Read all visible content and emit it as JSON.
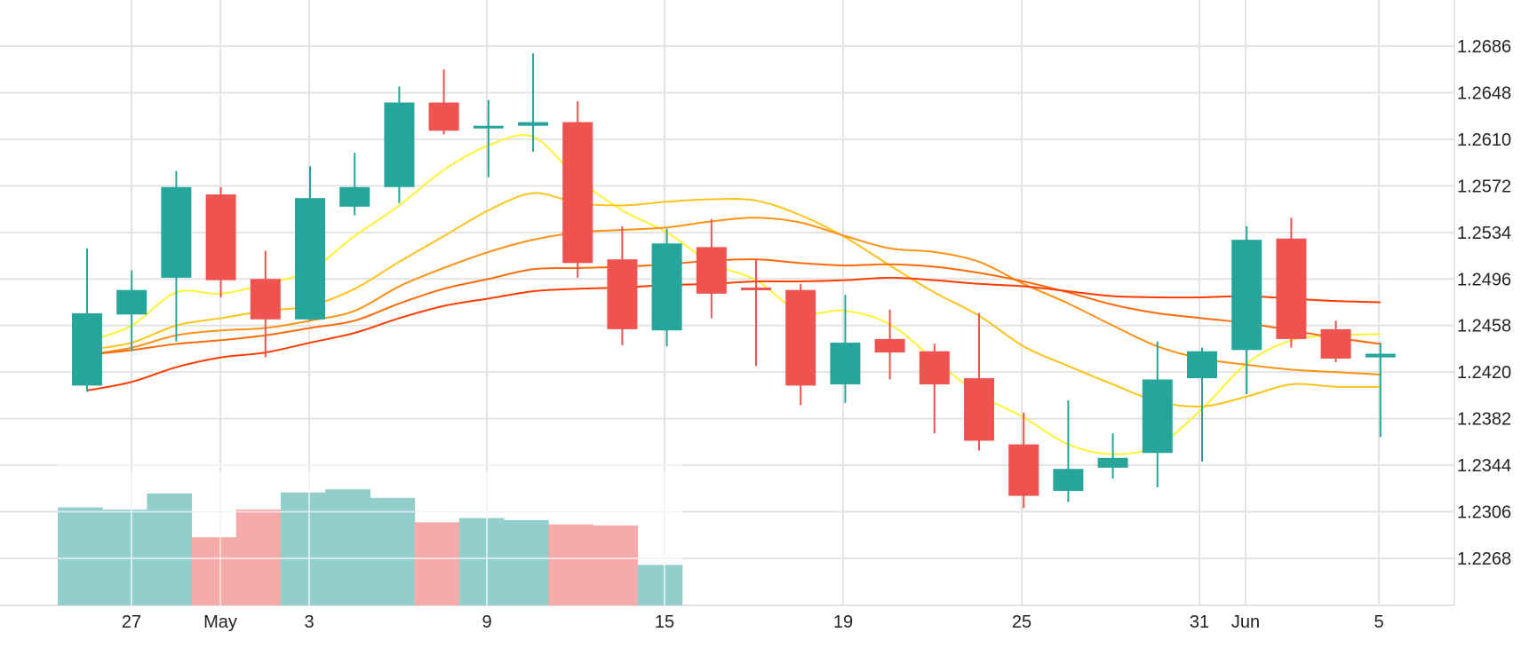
{
  "chart_data": {
    "type": "candlestick",
    "x_ticks": [
      "27",
      "May",
      "3",
      "9",
      "15",
      "19",
      "25",
      "31",
      "Jun",
      "5"
    ],
    "y_ticks": [
      "1.2686",
      "1.2648",
      "1.2610",
      "1.2572",
      "1.2534",
      "1.2496",
      "1.2458",
      "1.2420",
      "1.2382",
      "1.2344",
      "1.2306",
      "1.2268"
    ],
    "ylim": [
      1.2232,
      1.2722
    ],
    "grid": true,
    "candles": [
      {
        "date": "Apr 24",
        "open": 1.2409,
        "high": 1.2521,
        "low": 1.2404,
        "close": 1.2468
      },
      {
        "date": "Apr 26",
        "open": 1.2467,
        "high": 1.2503,
        "low": 1.2437,
        "close": 1.2487
      },
      {
        "date": "Apr 28",
        "open": 1.2497,
        "high": 1.2584,
        "low": 1.2445,
        "close": 1.2571
      },
      {
        "date": "Apr 30",
        "open": 1.2565,
        "high": 1.2571,
        "low": 1.2481,
        "close": 1.2495
      },
      {
        "date": "May 2",
        "open": 1.2496,
        "high": 1.2519,
        "low": 1.2432,
        "close": 1.2463
      },
      {
        "date": "May 3",
        "open": 1.2463,
        "high": 1.2588,
        "low": 1.2462,
        "close": 1.2562
      },
      {
        "date": "May 5",
        "open": 1.2555,
        "high": 1.2599,
        "low": 1.2548,
        "close": 1.2571
      },
      {
        "date": "May 6",
        "open": 1.2571,
        "high": 1.2653,
        "low": 1.2558,
        "close": 1.264
      },
      {
        "date": "May 8",
        "open": 1.264,
        "high": 1.2667,
        "low": 1.2614,
        "close": 1.2617
      },
      {
        "date": "May 9",
        "open": 1.262,
        "high": 1.2642,
        "low": 1.2579,
        "close": 1.2621
      },
      {
        "date": "May 10",
        "open": 1.2621,
        "high": 1.268,
        "low": 1.26,
        "close": 1.2624
      },
      {
        "date": "May 12",
        "open": 1.2624,
        "high": 1.2641,
        "low": 1.2497,
        "close": 1.2509
      },
      {
        "date": "May 13",
        "open": 1.2512,
        "high": 1.2539,
        "low": 1.2442,
        "close": 1.2455
      },
      {
        "date": "May 15",
        "open": 1.2454,
        "high": 1.2537,
        "low": 1.2441,
        "close": 1.2525
      },
      {
        "date": "May 16",
        "open": 1.2522,
        "high": 1.2545,
        "low": 1.2464,
        "close": 1.2484
      },
      {
        "date": "May 17",
        "open": 1.2489,
        "high": 1.2512,
        "low": 1.2425,
        "close": 1.2487
      },
      {
        "date": "May 18",
        "open": 1.2487,
        "high": 1.2492,
        "low": 1.2393,
        "close": 1.2409
      },
      {
        "date": "May 19",
        "open": 1.241,
        "high": 1.2483,
        "low": 1.2395,
        "close": 1.2444
      },
      {
        "date": "May 21",
        "open": 1.2447,
        "high": 1.2471,
        "low": 1.2414,
        "close": 1.2436
      },
      {
        "date": "May 22",
        "open": 1.2437,
        "high": 1.2443,
        "low": 1.237,
        "close": 1.241
      },
      {
        "date": "May 24",
        "open": 1.2415,
        "high": 1.2468,
        "low": 1.2356,
        "close": 1.2364
      },
      {
        "date": "May 25",
        "open": 1.2361,
        "high": 1.2387,
        "low": 1.2309,
        "close": 1.2319
      },
      {
        "date": "May 26",
        "open": 1.2323,
        "high": 1.2397,
        "low": 1.2314,
        "close": 1.2341
      },
      {
        "date": "May 28",
        "open": 1.2342,
        "high": 1.237,
        "low": 1.2333,
        "close": 1.235
      },
      {
        "date": "May 30",
        "open": 1.2354,
        "high": 1.2445,
        "low": 1.2326,
        "close": 1.2414
      },
      {
        "date": "May 31",
        "open": 1.2415,
        "high": 1.244,
        "low": 1.2347,
        "close": 1.2437
      },
      {
        "date": "Jun 1",
        "open": 1.2438,
        "high": 1.2539,
        "low": 1.2402,
        "close": 1.2528
      },
      {
        "date": "Jun 2",
        "open": 1.2529,
        "high": 1.2546,
        "low": 1.244,
        "close": 1.2447
      },
      {
        "date": "Jun 4",
        "open": 1.2455,
        "high": 1.2462,
        "low": 1.2428,
        "close": 1.2431
      },
      {
        "date": "Jun 5",
        "open": 1.2432,
        "high": 1.2444,
        "low": 1.2367,
        "close": 1.2435
      }
    ],
    "volume_bars": [
      {
        "date": "Apr 24",
        "value": 92,
        "direction": "up"
      },
      {
        "date": "Apr 26",
        "value": 90,
        "direction": "up"
      },
      {
        "date": "Apr 28",
        "value": 105,
        "direction": "up"
      },
      {
        "date": "Apr 30",
        "value": 64,
        "direction": "down"
      },
      {
        "date": "May 2",
        "value": 90,
        "direction": "down"
      },
      {
        "date": "May 3",
        "value": 106,
        "direction": "up"
      },
      {
        "date": "May 5",
        "value": 109,
        "direction": "up"
      },
      {
        "date": "May 6",
        "value": 101,
        "direction": "up"
      },
      {
        "date": "May 8",
        "value": 78,
        "direction": "down"
      },
      {
        "date": "May 9",
        "value": 82,
        "direction": "up"
      },
      {
        "date": "May 10",
        "value": 80,
        "direction": "up"
      },
      {
        "date": "May 12",
        "value": 76,
        "direction": "down"
      },
      {
        "date": "May 13",
        "value": 75,
        "direction": "down"
      },
      {
        "date": "May 15",
        "value": 38,
        "direction": "up"
      }
    ],
    "moving_averages": [
      {
        "color": "#fff233",
        "values": [
          1.2445,
          1.2458,
          1.2485,
          1.2484,
          1.2492,
          1.2503,
          1.2531,
          1.2556,
          1.2585,
          1.2605,
          1.2612,
          1.2578,
          1.2552,
          1.2534,
          1.2509,
          1.2495,
          1.2469,
          1.247,
          1.2459,
          1.243,
          1.2402,
          1.2383,
          1.2361,
          1.2353,
          1.236,
          1.239,
          1.2427,
          1.2446,
          1.245,
          1.2451
        ]
      },
      {
        "color": "#ffc21a",
        "values": [
          1.2438,
          1.2444,
          1.2458,
          1.2464,
          1.247,
          1.2474,
          1.2488,
          1.251,
          1.2531,
          1.2552,
          1.2566,
          1.2558,
          1.2556,
          1.2559,
          1.2561,
          1.256,
          1.2548,
          1.253,
          1.2507,
          1.2485,
          1.2466,
          1.2441,
          1.2425,
          1.241,
          1.2396,
          1.2392,
          1.24,
          1.241,
          1.2408,
          1.2408
        ]
      },
      {
        "color": "#ff9115",
        "values": [
          1.2434,
          1.244,
          1.245,
          1.2454,
          1.2456,
          1.2462,
          1.247,
          1.249,
          1.2505,
          1.2518,
          1.2528,
          1.2534,
          1.2536,
          1.2538,
          1.2543,
          1.2546,
          1.2542,
          1.2531,
          1.2521,
          1.2518,
          1.251,
          1.2492,
          1.2476,
          1.2458,
          1.2441,
          1.2431,
          1.2426,
          1.2422,
          1.242,
          1.2418
        ]
      },
      {
        "color": "#ff6a0a",
        "values": [
          1.2434,
          1.2438,
          1.2443,
          1.2446,
          1.245,
          1.2456,
          1.2462,
          1.2476,
          1.2488,
          1.2496,
          1.2504,
          1.2505,
          1.2506,
          1.2508,
          1.2511,
          1.2512,
          1.2509,
          1.2507,
          1.2508,
          1.2506,
          1.2501,
          1.2494,
          1.2485,
          1.2475,
          1.2468,
          1.2464,
          1.246,
          1.2454,
          1.2448,
          1.2443
        ]
      },
      {
        "color": "#ff3d00",
        "values": [
          1.2405,
          1.2412,
          1.2424,
          1.2432,
          1.2436,
          1.2444,
          1.2452,
          1.2464,
          1.2474,
          1.248,
          1.2486,
          1.2488,
          1.2489,
          1.2491,
          1.2492,
          1.2494,
          1.2494,
          1.2495,
          1.2497,
          1.2495,
          1.2492,
          1.249,
          1.2486,
          1.2482,
          1.2481,
          1.2481,
          1.2482,
          1.248,
          1.2478,
          1.2477
        ]
      }
    ],
    "colors": {
      "up": "#26a69a",
      "down": "#ef5350",
      "up_volume": "#92cecb",
      "down_volume": "#f5aba9",
      "grid": "#e3e3e3"
    }
  }
}
